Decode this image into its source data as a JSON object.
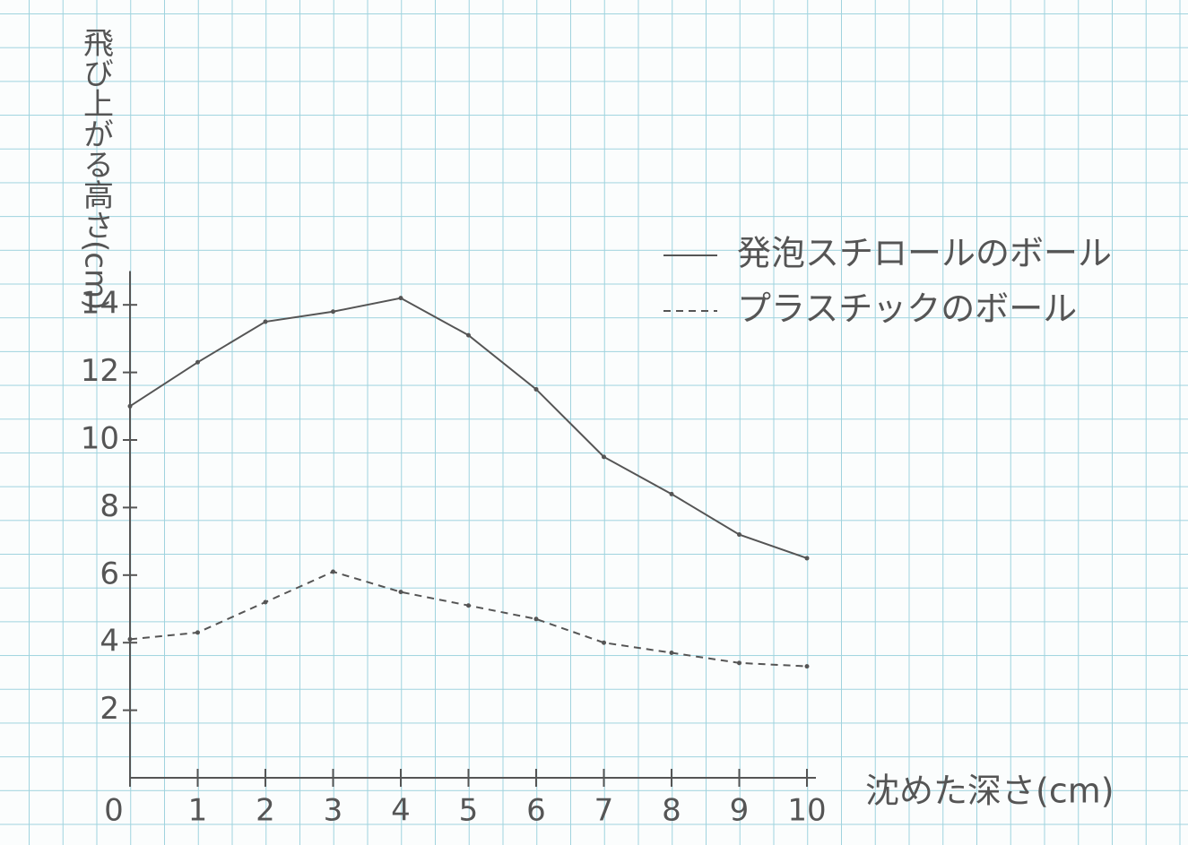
{
  "chart_data": {
    "type": "line",
    "y_label": "飛び上がる高さ(cm)",
    "x_label": "沈めた深さ(cm)",
    "x": [
      0,
      1,
      2,
      3,
      4,
      5,
      6,
      7,
      8,
      9,
      10
    ],
    "series": [
      {
        "name": "発泡スチロールのボール",
        "color": "#555555",
        "dash": "solid",
        "values": [
          11.0,
          12.3,
          13.5,
          13.8,
          14.2,
          13.1,
          11.5,
          9.5,
          8.4,
          7.2,
          6.5
        ]
      },
      {
        "name": "プラスチックのボール",
        "color": "#555555",
        "dash": "dashed",
        "values": [
          4.1,
          4.3,
          5.2,
          6.1,
          5.5,
          5.1,
          4.7,
          4.0,
          3.7,
          3.4,
          3.3
        ]
      }
    ],
    "xlim": [
      0,
      10
    ],
    "xticks": [
      0,
      1,
      2,
      3,
      4,
      5,
      6,
      7,
      8,
      9,
      10
    ],
    "ylim": [
      0,
      15
    ],
    "yticks": [
      2,
      4,
      6,
      8,
      10,
      12,
      14
    ]
  }
}
